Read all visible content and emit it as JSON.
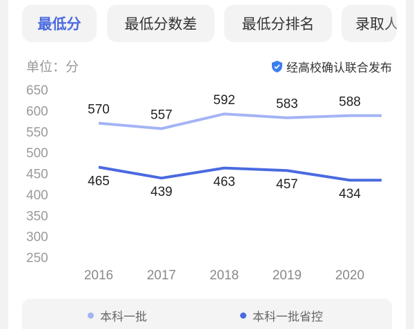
{
  "tabs": [
    {
      "label": "最低分",
      "active": true
    },
    {
      "label": "最低分数差",
      "active": false
    },
    {
      "label": "最低分排名",
      "active": false
    },
    {
      "label": "录取人数",
      "active": false
    }
  ],
  "unit_label": "单位：分",
  "badge": {
    "icon": "verified-shield-icon",
    "text": "经高校确认联合发布"
  },
  "colors": {
    "accent": "#4a6ae0",
    "series1": "#a3b4f5",
    "series2": "#4a6ae0"
  },
  "chart_data": {
    "type": "line",
    "categories": [
      "2016",
      "2017",
      "2018",
      "2019",
      "2020"
    ],
    "yticks": [
      "650",
      "600",
      "550",
      "500",
      "450",
      "400",
      "350",
      "300",
      "250"
    ],
    "ylim": [
      250,
      650
    ],
    "grid": false,
    "legend_position": "bottom",
    "series": [
      {
        "name": "本科一批",
        "values": [
          570,
          557,
          592,
          583,
          588
        ]
      },
      {
        "name": "本科一批省控",
        "values": [
          465,
          439,
          463,
          457,
          434
        ]
      }
    ]
  }
}
